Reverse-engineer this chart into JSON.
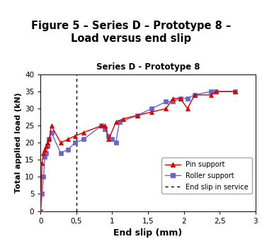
{
  "title_box": "Figure 5 – Series D – Prototype 8 –\nLoad versus end slip",
  "subtitle": "Series D - Prototype 8",
  "xlabel": "End slip (mm)",
  "ylabel": "Total applied load (kN)",
  "title_bg_color": "#F5C000",
  "xlim": [
    0,
    3
  ],
  "ylim": [
    0,
    40
  ],
  "xticks": [
    0,
    0.5,
    1,
    1.5,
    2,
    2.5,
    3
  ],
  "xticklabels": [
    "0",
    "0,5",
    "1",
    "1,5",
    "2",
    "2,5",
    "3"
  ],
  "yticks": [
    0,
    5,
    10,
    15,
    20,
    25,
    30,
    35,
    40
  ],
  "end_slip_service": 0.5,
  "pin_x": [
    0,
    0.02,
    0.04,
    0.06,
    0.08,
    0.1,
    0.12,
    0.15,
    0.28,
    0.38,
    0.48,
    0.6,
    0.85,
    0.9,
    0.95,
    1.05,
    1.15,
    1.35,
    1.55,
    1.75,
    1.85,
    1.95,
    2.05,
    2.15,
    2.38,
    2.45,
    2.72
  ],
  "pin_y": [
    0,
    14,
    17,
    18,
    19,
    20,
    21,
    25,
    20,
    21,
    22,
    23,
    25,
    25,
    21,
    26,
    27,
    28,
    29,
    30,
    33,
    33,
    30,
    34,
    34,
    35,
    35
  ],
  "roller_x": [
    0,
    0.02,
    0.04,
    0.06,
    0.08,
    0.1,
    0.12,
    0.15,
    0.28,
    0.38,
    0.48,
    0.6,
    0.85,
    0.9,
    0.95,
    1.0,
    1.05,
    1.1,
    1.35,
    1.55,
    1.75,
    1.85,
    1.95,
    2.05,
    2.15,
    2.38,
    2.45,
    2.72
  ],
  "roller_y": [
    0,
    5,
    10,
    16,
    17,
    19,
    21,
    23,
    17,
    18,
    20,
    21,
    25,
    24,
    22,
    21,
    20,
    26,
    28,
    30,
    32,
    32,
    33,
    33,
    34,
    35,
    35,
    35
  ],
  "pin_color": "#DD0000",
  "roller_color": "#6666CC",
  "pin_marker": "^",
  "roller_marker": "s",
  "marker_size": 4,
  "line_width": 1.0
}
